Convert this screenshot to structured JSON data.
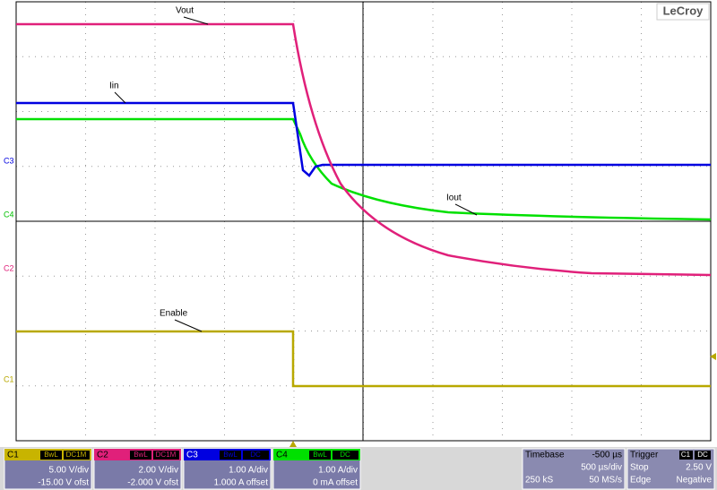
{
  "brand": "LeCroy",
  "trace_labels": {
    "vout": "Vout",
    "iin": "Iin",
    "iout": "Iout",
    "enable": "Enable"
  },
  "channel_markers": {
    "c3": "C3",
    "c4": "C4",
    "c2": "C2",
    "c1": "C1"
  },
  "channels": [
    {
      "name": "C1",
      "bandwidth": "BwL",
      "coupling": "DC1M",
      "scale": "5.00 V/div",
      "offset": "-15.00 V ofst"
    },
    {
      "name": "C2",
      "bandwidth": "BwL",
      "coupling": "DC1M",
      "scale": "2.00 V/div",
      "offset": "-2.000 V ofst"
    },
    {
      "name": "C3",
      "bandwidth": "BwL",
      "coupling": "DC",
      "scale": "1.00 A/div",
      "offset": "1.000 A offset"
    },
    {
      "name": "C4",
      "bandwidth": "BwL",
      "coupling": "DC",
      "scale": "1.00 A/div",
      "offset": "0 mA offset"
    }
  ],
  "timebase": {
    "title": "Timebase",
    "delay": "-500 µs",
    "per_div": "500 µs/div",
    "samples": "250 kS",
    "rate": "50 MS/s"
  },
  "trigger": {
    "title": "Trigger",
    "source": "C1",
    "coupling": "DC",
    "mode": "Stop",
    "level": "2.50 V",
    "type": "Edge",
    "slope": "Negative"
  }
}
